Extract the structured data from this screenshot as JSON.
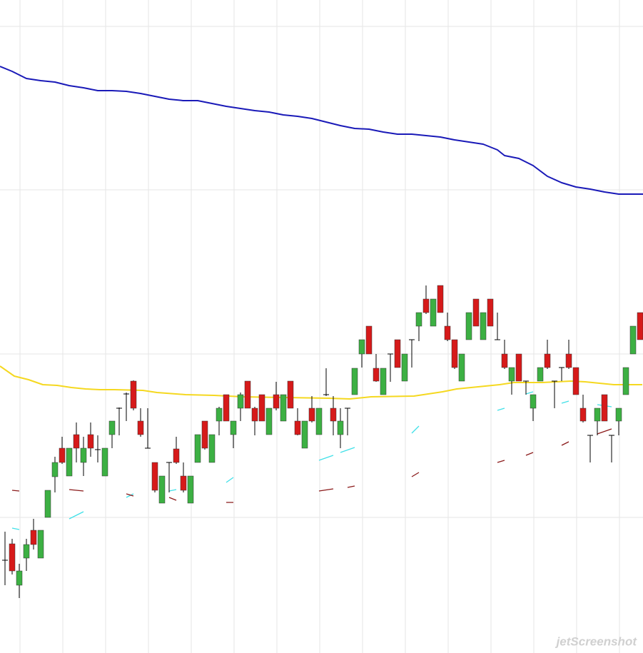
{
  "chart_data": {
    "type": "candlestick",
    "xlim": [
      -0.7,
      89.4
    ],
    "ylim": [
      0,
      915
    ],
    "xticks": [
      2.1,
      8.1,
      14.1,
      20.1,
      26.1,
      32.1,
      38.1,
      44.1,
      50.1,
      56.1,
      62.1,
      68.1,
      74.1,
      80.1,
      86.1
    ],
    "yticks": [
      190,
      419,
      649,
      878
    ],
    "grid": true,
    "up_color": "#3cb043",
    "down_color": "#d61a1a",
    "wick_color": "#000000",
    "candles": {
      "open": [
        130,
        153,
        95,
        133,
        172,
        133,
        190,
        247,
        287,
        248,
        306,
        267,
        306,
        285,
        248,
        306,
        343,
        363,
        381,
        325,
        287,
        267,
        210,
        267,
        286,
        248,
        210,
        267,
        325,
        267,
        325,
        362,
        306,
        343,
        381,
        343,
        362,
        306,
        362,
        325,
        381,
        325,
        287,
        343,
        306,
        362,
        343,
        306,
        343,
        362,
        419,
        458,
        399,
        362,
        419,
        439,
        381,
        439,
        458,
        496,
        458,
        515,
        458,
        439,
        381,
        439,
        496,
        439,
        496,
        439,
        419,
        381,
        419,
        381,
        343,
        381,
        419,
        381,
        400,
        419,
        400,
        343,
        305,
        325,
        362,
        305,
        325,
        362,
        419,
        477
      ],
      "high": [
        170,
        160,
        125,
        160,
        188,
        172,
        228,
        275,
        303,
        287,
        323,
        303,
        323,
        305,
        287,
        325,
        344,
        365,
        382,
        343,
        343,
        267,
        248,
        267,
        303,
        267,
        248,
        306,
        325,
        306,
        345,
        362,
        325,
        365,
        381,
        345,
        362,
        343,
        380,
        362,
        381,
        343,
        325,
        360,
        343,
        399,
        360,
        343,
        343,
        399,
        439,
        458,
        419,
        399,
        419,
        439,
        419,
        439,
        477,
        515,
        496,
        515,
        477,
        439,
        419,
        477,
        496,
        477,
        496,
        477,
        439,
        400,
        419,
        381,
        362,
        400,
        439,
        381,
        400,
        439,
        400,
        362,
        305,
        343,
        362,
        305,
        343,
        400,
        458,
        477
      ],
      "low": [
        95,
        110,
        77,
        115,
        145,
        133,
        190,
        225,
        265,
        248,
        267,
        248,
        275,
        267,
        248,
        287,
        305,
        325,
        340,
        303,
        287,
        225,
        210,
        225,
        265,
        225,
        210,
        267,
        285,
        267,
        305,
        325,
        287,
        325,
        343,
        305,
        325,
        306,
        340,
        325,
        343,
        305,
        287,
        323,
        306,
        360,
        305,
        287,
        305,
        362,
        400,
        419,
        380,
        362,
        380,
        400,
        381,
        400,
        437,
        475,
        458,
        477,
        437,
        398,
        381,
        439,
        458,
        439,
        458,
        439,
        398,
        362,
        381,
        362,
        325,
        381,
        398,
        343,
        381,
        398,
        362,
        323,
        267,
        305,
        325,
        267,
        305,
        362,
        419,
        439
      ],
      "close": [
        130,
        115,
        115,
        152,
        152,
        172,
        228,
        267,
        267,
        287,
        287,
        287,
        287,
        285,
        287,
        325,
        343,
        363,
        343,
        306,
        287,
        228,
        248,
        267,
        267,
        228,
        248,
        306,
        287,
        306,
        343,
        325,
        325,
        362,
        343,
        325,
        325,
        343,
        343,
        362,
        343,
        306,
        325,
        325,
        343,
        362,
        325,
        325,
        343,
        399,
        439,
        419,
        381,
        399,
        419,
        400,
        419,
        439,
        477,
        477,
        496,
        477,
        439,
        400,
        419,
        477,
        458,
        477,
        458,
        439,
        400,
        400,
        381,
        381,
        362,
        400,
        400,
        381,
        400,
        400,
        362,
        325,
        305,
        343,
        325,
        305,
        343,
        400,
        458,
        439
      ]
    },
    "lines": [
      {
        "color": "#1a1ab8",
        "x": [
          -0.7,
          1,
          3,
          5,
          7,
          9,
          11,
          13,
          15,
          17,
          19,
          21,
          23,
          25,
          27,
          29,
          31,
          33,
          35,
          37,
          39,
          41,
          43,
          45,
          47,
          49,
          51,
          53,
          55,
          57,
          59,
          61,
          63,
          65,
          67,
          69,
          70,
          72,
          74,
          76,
          78,
          80,
          82,
          84,
          86,
          89.4
        ],
        "values": [
          822,
          815,
          805,
          802,
          800,
          795,
          792,
          788,
          788,
          787,
          784,
          780,
          776,
          774,
          774,
          770,
          766,
          763,
          760,
          758,
          754,
          752,
          749,
          744,
          739,
          735,
          734,
          730,
          727,
          727,
          725,
          723,
          719,
          716,
          713,
          705,
          697,
          693,
          683,
          668,
          659,
          653,
          650,
          646,
          643,
          643
        ]
      },
      {
        "color": "#f5d820",
        "x": [
          -0.7,
          1.3,
          3.3,
          5.3,
          7.3,
          9.3,
          11.3,
          13.3,
          15.3,
          19.3,
          21.3,
          25.3,
          29.3,
          33.3,
          39.3,
          45.3,
          48.3,
          51.3,
          57.3,
          59.3,
          61.3,
          63.3,
          65.3,
          69.3,
          71.3,
          75.3,
          79.3,
          81.3,
          83.3,
          85.3,
          89.3
        ],
        "values": [
          402,
          388,
          383,
          376,
          375,
          372,
          370,
          369,
          369,
          368,
          365,
          362,
          361,
          359,
          358,
          357,
          356,
          359,
          360,
          363,
          366,
          370,
          372,
          376,
          379,
          379,
          381,
          380,
          378,
          376,
          376
        ]
      },
      {
        "color": "#40e0e8",
        "x": [
          1,
          2,
          5,
          9,
          11,
          14,
          17,
          18,
          20,
          23,
          24,
          27,
          31,
          32,
          38,
          44,
          46,
          46.5,
          47,
          49,
          53,
          57,
          58,
          63,
          69,
          70,
          71,
          73,
          74,
          76,
          78,
          79,
          81,
          83,
          85
        ],
        "values": [
          175,
          173,
          null,
          188,
          198,
          null,
          218,
          223,
          null,
          227,
          229,
          null,
          239,
          246,
          null,
          270,
          277,
          null,
          281,
          288,
          null,
          308,
          318,
          null,
          340,
          343,
          null,
          363,
          366,
          null,
          350,
          353,
          null,
          348,
          345
        ]
      },
      {
        "color": "#8b1a1a",
        "x": [
          1,
          2,
          5,
          9,
          11,
          14,
          17,
          18,
          20,
          23,
          24,
          27,
          31,
          32,
          38,
          44,
          46,
          47,
          48,
          49,
          53,
          57,
          58,
          63,
          69,
          70,
          71,
          73,
          74,
          76,
          78,
          79,
          81,
          83,
          85
        ],
        "values": [
          228,
          227,
          null,
          229,
          227,
          null,
          223,
          220,
          null,
          218,
          214,
          null,
          211,
          211,
          null,
          227,
          230,
          null,
          232,
          234,
          null,
          247,
          253,
          null,
          267,
          270,
          null,
          277,
          281,
          null,
          291,
          296,
          null,
          307,
          314
        ]
      }
    ]
  },
  "watermark": "jetScreenshot"
}
